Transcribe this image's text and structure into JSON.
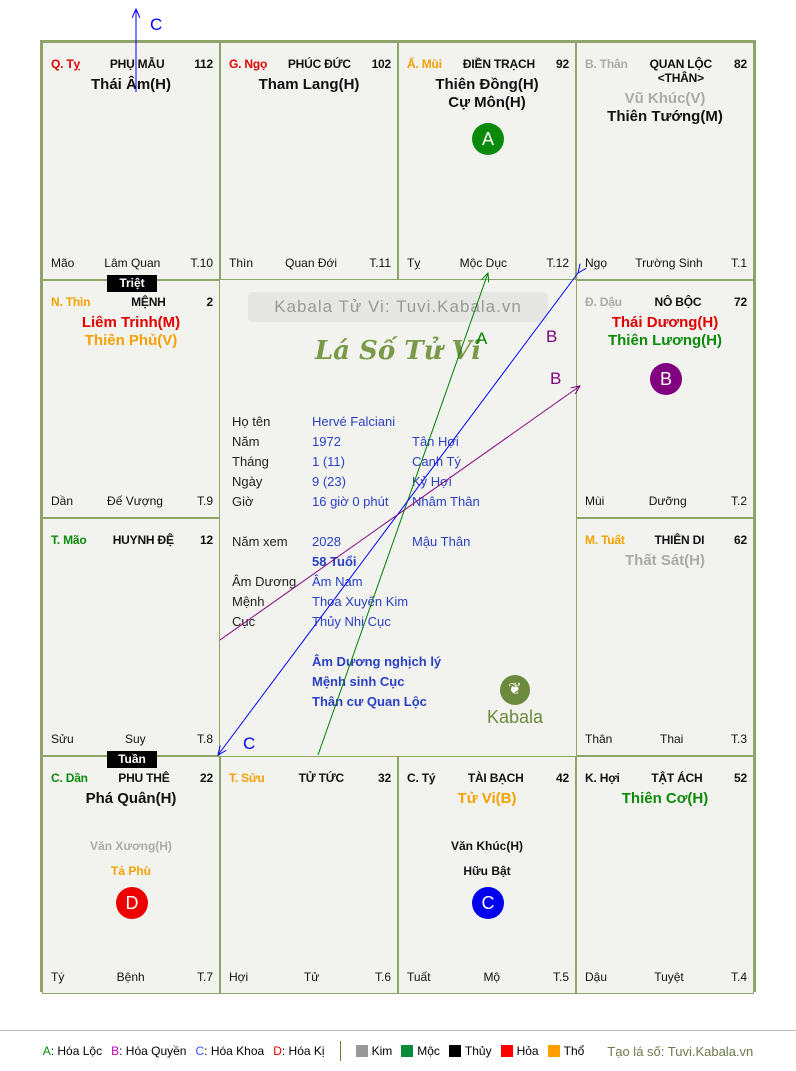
{
  "cells": [
    {
      "row": 0,
      "col": 0,
      "can": "Q. Tỵ",
      "can_color": "#e00000",
      "palace": "PHỤ MẪU",
      "num": "112",
      "stars": [
        {
          "t": "Thái Âm(H)",
          "c": "#111"
        }
      ],
      "minor": [],
      "bottom": [
        "Mão",
        "Lâm Quan",
        "T.10"
      ]
    },
    {
      "row": 0,
      "col": 1,
      "can": "G. Ngọ",
      "can_color": "#e00000",
      "palace": "PHÚC ĐỨC",
      "num": "102",
      "stars": [
        {
          "t": "Tham Lang(H)",
          "c": "#111"
        }
      ],
      "minor": [],
      "bottom": [
        "Thìn",
        "Quan Đới",
        "T.11"
      ]
    },
    {
      "row": 0,
      "col": 2,
      "can": "Ấ. Mùi",
      "can_color": "#f5a000",
      "palace": "ĐIỀN TRẠCH",
      "num": "92",
      "stars": [
        {
          "t": "Thiên Đồng(H)",
          "c": "#111"
        },
        {
          "t": "Cự Môn(H)",
          "c": "#111"
        }
      ],
      "minor": [],
      "bottom": [
        "Tỵ",
        "Mộc Dục",
        "T.12"
      ],
      "circle": {
        "t": "A",
        "c": "#0a8a0a"
      }
    },
    {
      "row": 0,
      "col": 3,
      "can": "B. Thân",
      "can_color": "#aaaaaa",
      "palace": "QUAN LỘC <THÂN>",
      "num": "82",
      "stars": [
        {
          "t": "Vũ Khúc(V)",
          "c": "#aaaaaa"
        },
        {
          "t": "Thiên Tướng(M)",
          "c": "#111"
        }
      ],
      "minor": [],
      "bottom": [
        "Ngọ",
        "Trường Sinh",
        "T.1"
      ]
    },
    {
      "row": 1,
      "col": 0,
      "can": "N. Thìn",
      "can_color": "#f5a000",
      "palace": "MỆNH",
      "num": "2",
      "stars": [
        {
          "t": "Liêm Trinh(M)",
          "c": "#e00000"
        },
        {
          "t": "Thiên Phủ(V)",
          "c": "#f5a000"
        }
      ],
      "minor": [],
      "bottom": [
        "Dần",
        "Đế Vượng",
        "T.9"
      ],
      "badge": "Triệt"
    },
    {
      "row": 1,
      "col": 3,
      "can": "Đ. Dậu",
      "can_color": "#aaaaaa",
      "palace": "NÔ BỘC",
      "num": "72",
      "stars": [
        {
          "t": "Thái Dương(H)",
          "c": "#e00000"
        },
        {
          "t": "Thiên Lương(H)",
          "c": "#0a8a0a"
        }
      ],
      "minor": [],
      "bottom": [
        "Mùi",
        "Dưỡng",
        "T.2"
      ],
      "circle": {
        "t": "B",
        "c": "#800080"
      }
    },
    {
      "row": 2,
      "col": 0,
      "can": "T. Mão",
      "can_color": "#0a8a0a",
      "palace": "HUYNH ĐỆ",
      "num": "12",
      "stars": [],
      "minor": [],
      "bottom": [
        "Sửu",
        "Suy",
        "T.8"
      ]
    },
    {
      "row": 2,
      "col": 3,
      "can": "M. Tuất",
      "can_color": "#f5a000",
      "palace": "THIÊN DI",
      "num": "62",
      "stars": [
        {
          "t": "Thất Sát(H)",
          "c": "#aaaaaa"
        }
      ],
      "minor": [],
      "bottom": [
        "Thân",
        "Thai",
        "T.3"
      ]
    },
    {
      "row": 3,
      "col": 0,
      "can": "C. Dần",
      "can_color": "#0a8a0a",
      "palace": "PHU THÊ",
      "num": "22",
      "stars": [
        {
          "t": "Phá Quân(H)",
          "c": "#111"
        }
      ],
      "minor": [
        {
          "t": "Văn Xương(H)",
          "c": "#aaaaaa"
        },
        {
          "t": "Tả Phù",
          "c": "#f5a000"
        }
      ],
      "bottom": [
        "Tý",
        "Bệnh",
        "T.7"
      ],
      "circle": {
        "t": "D",
        "c": "#ee0000"
      },
      "badge": "Tuần"
    },
    {
      "row": 3,
      "col": 1,
      "can": "T. Sửu",
      "can_color": "#f5a000",
      "palace": "TỬ TỨC",
      "num": "32",
      "stars": [],
      "minor": [],
      "bottom": [
        "Hợi",
        "Tử",
        "T.6"
      ]
    },
    {
      "row": 3,
      "col": 2,
      "can": "C. Tý",
      "can_color": "#111111",
      "palace": "TÀI BẠCH",
      "num": "42",
      "stars": [
        {
          "t": "Tử Vi(B)",
          "c": "#f5a000"
        }
      ],
      "minor": [
        {
          "t": "Văn Khúc(H)",
          "c": "#111"
        },
        {
          "t": "Hữu Bật",
          "c": "#111"
        }
      ],
      "bottom": [
        "Tuất",
        "Mộ",
        "T.5"
      ],
      "circle": {
        "t": "C",
        "c": "#0000ee"
      }
    },
    {
      "row": 3,
      "col": 3,
      "can": "K. Hợi",
      "can_color": "#111111",
      "palace": "TẬT ÁCH",
      "num": "52",
      "stars": [
        {
          "t": "Thiên Cơ(H)",
          "c": "#0a8a0a"
        }
      ],
      "minor": [],
      "bottom": [
        "Dậu",
        "Tuyệt",
        "T.4"
      ]
    }
  ],
  "center": {
    "watermark": "Kabala Tử Vi: Tuvi.Kabala.vn",
    "title": "Lá Số Tử Vi",
    "rows": [
      {
        "k": "Họ tên",
        "v": "Hervé Falciani",
        "v2": ""
      },
      {
        "k": "Năm",
        "v": "1972",
        "v2": "Tân Hợi"
      },
      {
        "k": "Tháng",
        "v": "1  (11)",
        "v2": "Canh Tý"
      },
      {
        "k": "Ngày",
        "v": "9  (23)",
        "v2": "Kỷ Hợi"
      },
      {
        "k": "Giờ",
        "v": "16 giờ 0 phút",
        "v2": "Nhâm Thân"
      },
      {
        "k": "Năm xem",
        "v": "2028",
        "v2": "Mậu Thân"
      },
      {
        "k": "",
        "v": "58 Tuổi",
        "v2": "",
        "bold": true
      },
      {
        "k": "Âm Dương",
        "v": "Âm Nam",
        "v2": ""
      },
      {
        "k": "Mệnh",
        "v": "Thoa Xuyến Kim",
        "v2": ""
      },
      {
        "k": "Cục",
        "v": "Thủy Nhị Cục",
        "v2": ""
      },
      {
        "k": "",
        "v": "Âm Dương nghịch lý",
        "v2": "",
        "bold": true
      },
      {
        "k": "",
        "v": "Mệnh sinh Cục",
        "v2": "",
        "bold": true
      },
      {
        "k": "",
        "v": "Thân cư Quan Lộc",
        "v2": "",
        "bold": true
      }
    ],
    "logo": "Kabala"
  },
  "arrows": {
    "A": "A",
    "B": "B",
    "C": "C"
  },
  "legend": {
    "a": "A",
    "a_label": ": Hóa Lộc",
    "b": "B",
    "b_label": ": Hóa Quyền",
    "c": "C",
    "c_label": ": Hóa Khoa",
    "d": "D",
    "d_label": ": Hóa Kị",
    "elements": [
      {
        "t": "Kim",
        "c": "#999999"
      },
      {
        "t": "Mộc",
        "c": "#0a8a3a"
      },
      {
        "t": "Thủy",
        "c": "#000000"
      },
      {
        "t": "Hỏa",
        "c": "#ff0000"
      },
      {
        "t": "Thổ",
        "c": "#ffa000"
      }
    ],
    "credit": "Tạo lá số: Tuvi.Kabala.vn"
  }
}
